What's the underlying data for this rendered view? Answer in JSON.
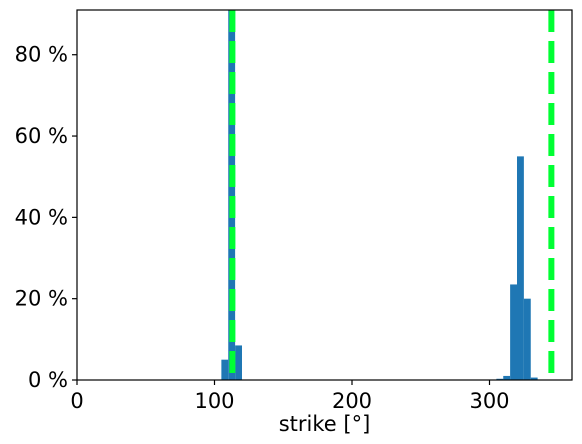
{
  "chart_data": {
    "type": "bar",
    "xlabel": "strike [°]",
    "ylabel": "",
    "xlim": [
      0,
      360
    ],
    "ylim": [
      0,
      91
    ],
    "x_ticks": [
      0,
      100,
      200,
      300
    ],
    "y_ticks": [
      0,
      20,
      40,
      60,
      80
    ],
    "y_tick_suffix": " %",
    "grid": false,
    "bar_color": "#1f77b4",
    "reference_line_color": "#00ff33",
    "bins": [
      {
        "x0": 105,
        "x1": 110,
        "value": 5
      },
      {
        "x0": 110,
        "x1": 115,
        "value": 91
      },
      {
        "x0": 115,
        "x1": 120,
        "value": 8.5
      },
      {
        "x0": 305,
        "x1": 310,
        "value": 0.3
      },
      {
        "x0": 310,
        "x1": 315,
        "value": 1
      },
      {
        "x0": 315,
        "x1": 320,
        "value": 23.5
      },
      {
        "x0": 320,
        "x1": 325,
        "value": 55
      },
      {
        "x0": 325,
        "x1": 330,
        "value": 20
      },
      {
        "x0": 330,
        "x1": 335,
        "value": 0.6
      }
    ],
    "reference_lines": [
      {
        "x": 113,
        "style": "dashed"
      },
      {
        "x": 345,
        "style": "dashed"
      }
    ]
  }
}
